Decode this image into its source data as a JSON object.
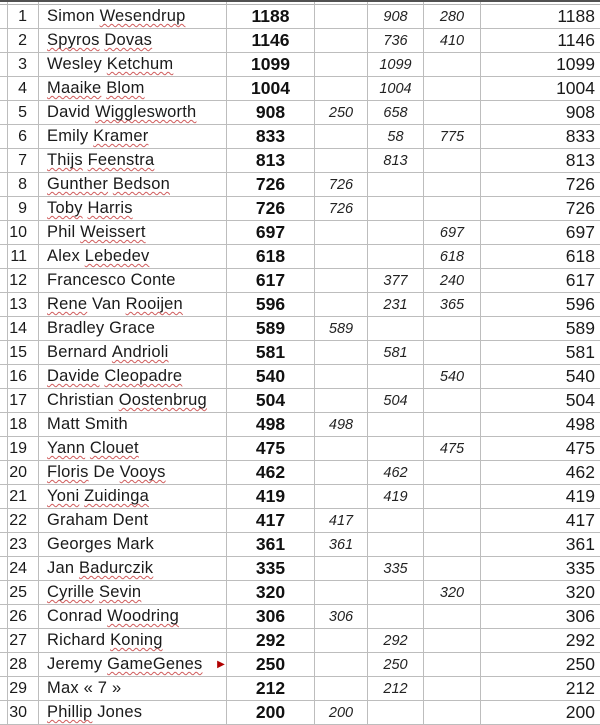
{
  "colors": {
    "gridline": "#bdbdbd",
    "top_border": "#515151",
    "squiggle_red": "#d05c5c",
    "overflow_marker_red": "#b00000",
    "text": "#1a1a1a"
  },
  "icons": {
    "overflow_marker_icon": "▶"
  },
  "table": {
    "rows": [
      {
        "rank": "1",
        "name_words": [
          "Simon",
          "Wesendrup"
        ],
        "misspelled": [
          1
        ],
        "total": "1188",
        "r1": "",
        "r2": "908",
        "r3": "280",
        "grand": "1188",
        "overflow": false
      },
      {
        "rank": "2",
        "name_words": [
          "Spyros",
          "Dovas"
        ],
        "misspelled": [
          0,
          1
        ],
        "total": "1146",
        "r1": "",
        "r2": "736",
        "r3": "410",
        "grand": "1146",
        "overflow": false
      },
      {
        "rank": "3",
        "name_words": [
          "Wesley",
          "Ketchum"
        ],
        "misspelled": [
          1
        ],
        "total": "1099",
        "r1": "",
        "r2": "1099",
        "r3": "",
        "grand": "1099",
        "overflow": false
      },
      {
        "rank": "4",
        "name_words": [
          "Maaike",
          "Blom"
        ],
        "misspelled": [
          0,
          1
        ],
        "total": "1004",
        "r1": "",
        "r2": "1004",
        "r3": "",
        "grand": "1004",
        "overflow": false
      },
      {
        "rank": "5",
        "name_words": [
          "David",
          "Wigglesworth"
        ],
        "misspelled": [
          1
        ],
        "total": "908",
        "r1": "250",
        "r2": "658",
        "r3": "",
        "grand": "908",
        "overflow": false
      },
      {
        "rank": "6",
        "name_words": [
          "Emily",
          "Kramer"
        ],
        "misspelled": [
          1
        ],
        "total": "833",
        "r1": "",
        "r2": "58",
        "r3": "775",
        "grand": "833",
        "overflow": false
      },
      {
        "rank": "7",
        "name_words": [
          "Thijs",
          "Feenstra"
        ],
        "misspelled": [
          0,
          1
        ],
        "total": "813",
        "r1": "",
        "r2": "813",
        "r3": "",
        "grand": "813",
        "overflow": false
      },
      {
        "rank": "8",
        "name_words": [
          "Gunther",
          "Bedson"
        ],
        "misspelled": [
          0,
          1
        ],
        "total": "726",
        "r1": "726",
        "r2": "",
        "r3": "",
        "grand": "726",
        "overflow": false
      },
      {
        "rank": "9",
        "name_words": [
          "Toby",
          "Harris"
        ],
        "misspelled": [
          0,
          1
        ],
        "total": "726",
        "r1": "726",
        "r2": "",
        "r3": "",
        "grand": "726",
        "overflow": false
      },
      {
        "rank": "10",
        "name_words": [
          "Phil",
          "Weissert"
        ],
        "misspelled": [
          1
        ],
        "total": "697",
        "r1": "",
        "r2": "",
        "r3": "697",
        "grand": "697",
        "overflow": false
      },
      {
        "rank": "11",
        "name_words": [
          "Alex",
          "Lebedev"
        ],
        "misspelled": [
          1
        ],
        "total": "618",
        "r1": "",
        "r2": "",
        "r3": "618",
        "grand": "618",
        "overflow": false
      },
      {
        "rank": "12",
        "name_words": [
          "Francesco",
          "Conte"
        ],
        "misspelled": [],
        "total": "617",
        "r1": "",
        "r2": "377",
        "r3": "240",
        "grand": "617",
        "overflow": false
      },
      {
        "rank": "13",
        "name_words": [
          "Rene",
          "Van",
          "Rooijen"
        ],
        "misspelled": [
          0,
          2
        ],
        "total": "596",
        "r1": "",
        "r2": "231",
        "r3": "365",
        "grand": "596",
        "overflow": false
      },
      {
        "rank": "14",
        "name_words": [
          "Bradley",
          "Grace"
        ],
        "misspelled": [],
        "total": "589",
        "r1": "589",
        "r2": "",
        "r3": "",
        "grand": "589",
        "overflow": false
      },
      {
        "rank": "15",
        "name_words": [
          "Bernard",
          "Andrioli"
        ],
        "misspelled": [
          1
        ],
        "total": "581",
        "r1": "",
        "r2": "581",
        "r3": "",
        "grand": "581",
        "overflow": false
      },
      {
        "rank": "16",
        "name_words": [
          "Davide",
          "Cleopadre"
        ],
        "misspelled": [
          0,
          1
        ],
        "total": "540",
        "r1": "",
        "r2": "",
        "r3": "540",
        "grand": "540",
        "overflow": false
      },
      {
        "rank": "17",
        "name_words": [
          "Christian",
          "Oostenbrug"
        ],
        "misspelled": [
          1
        ],
        "total": "504",
        "r1": "",
        "r2": "504",
        "r3": "",
        "grand": "504",
        "overflow": false
      },
      {
        "rank": "18",
        "name_words": [
          "Matt",
          "Smith"
        ],
        "misspelled": [],
        "total": "498",
        "r1": "498",
        "r2": "",
        "r3": "",
        "grand": "498",
        "overflow": false
      },
      {
        "rank": "19",
        "name_words": [
          "Yann",
          "Clouet"
        ],
        "misspelled": [
          0,
          1
        ],
        "total": "475",
        "r1": "",
        "r2": "",
        "r3": "475",
        "grand": "475",
        "overflow": false
      },
      {
        "rank": "20",
        "name_words": [
          "Floris",
          "De",
          "Vooys"
        ],
        "misspelled": [
          0,
          2
        ],
        "total": "462",
        "r1": "",
        "r2": "462",
        "r3": "",
        "grand": "462",
        "overflow": false
      },
      {
        "rank": "21",
        "name_words": [
          "Yoni",
          "Zuidinga"
        ],
        "misspelled": [
          0,
          1
        ],
        "total": "419",
        "r1": "",
        "r2": "419",
        "r3": "",
        "grand": "419",
        "overflow": false
      },
      {
        "rank": "22",
        "name_words": [
          "Graham",
          "Dent"
        ],
        "misspelled": [],
        "total": "417",
        "r1": "417",
        "r2": "",
        "r3": "",
        "grand": "417",
        "overflow": false
      },
      {
        "rank": "23",
        "name_words": [
          "Georges",
          "Mark"
        ],
        "misspelled": [],
        "total": "361",
        "r1": "361",
        "r2": "",
        "r3": "",
        "grand": "361",
        "overflow": false
      },
      {
        "rank": "24",
        "name_words": [
          "Jan",
          "Badurczik"
        ],
        "misspelled": [
          1
        ],
        "total": "335",
        "r1": "",
        "r2": "335",
        "r3": "",
        "grand": "335",
        "overflow": false
      },
      {
        "rank": "25",
        "name_words": [
          "Cyrille",
          "Sevin"
        ],
        "misspelled": [
          0,
          1
        ],
        "total": "320",
        "r1": "",
        "r2": "",
        "r3": "320",
        "grand": "320",
        "overflow": false
      },
      {
        "rank": "26",
        "name_words": [
          "Conrad",
          "Woodring"
        ],
        "misspelled": [
          1
        ],
        "total": "306",
        "r1": "306",
        "r2": "",
        "r3": "",
        "grand": "306",
        "overflow": false
      },
      {
        "rank": "27",
        "name_words": [
          "Richard",
          "Koning"
        ],
        "misspelled": [
          1
        ],
        "total": "292",
        "r1": "",
        "r2": "292",
        "r3": "",
        "grand": "292",
        "overflow": false
      },
      {
        "rank": "28",
        "name_words": [
          "Jeremy",
          "GameGenes"
        ],
        "misspelled": [
          1
        ],
        "total": "250",
        "r1": "",
        "r2": "250",
        "r3": "",
        "grand": "250",
        "overflow": true
      },
      {
        "rank": "29",
        "name_words": [
          "Max",
          "«",
          "7",
          "»"
        ],
        "misspelled": [],
        "total": "212",
        "r1": "",
        "r2": "212",
        "r3": "",
        "grand": "212",
        "overflow": false
      },
      {
        "rank": "30",
        "name_words": [
          "Phillip",
          "Jones"
        ],
        "misspelled": [
          0
        ],
        "total": "200",
        "r1": "200",
        "r2": "",
        "r3": "",
        "grand": "200",
        "overflow": false
      }
    ]
  }
}
